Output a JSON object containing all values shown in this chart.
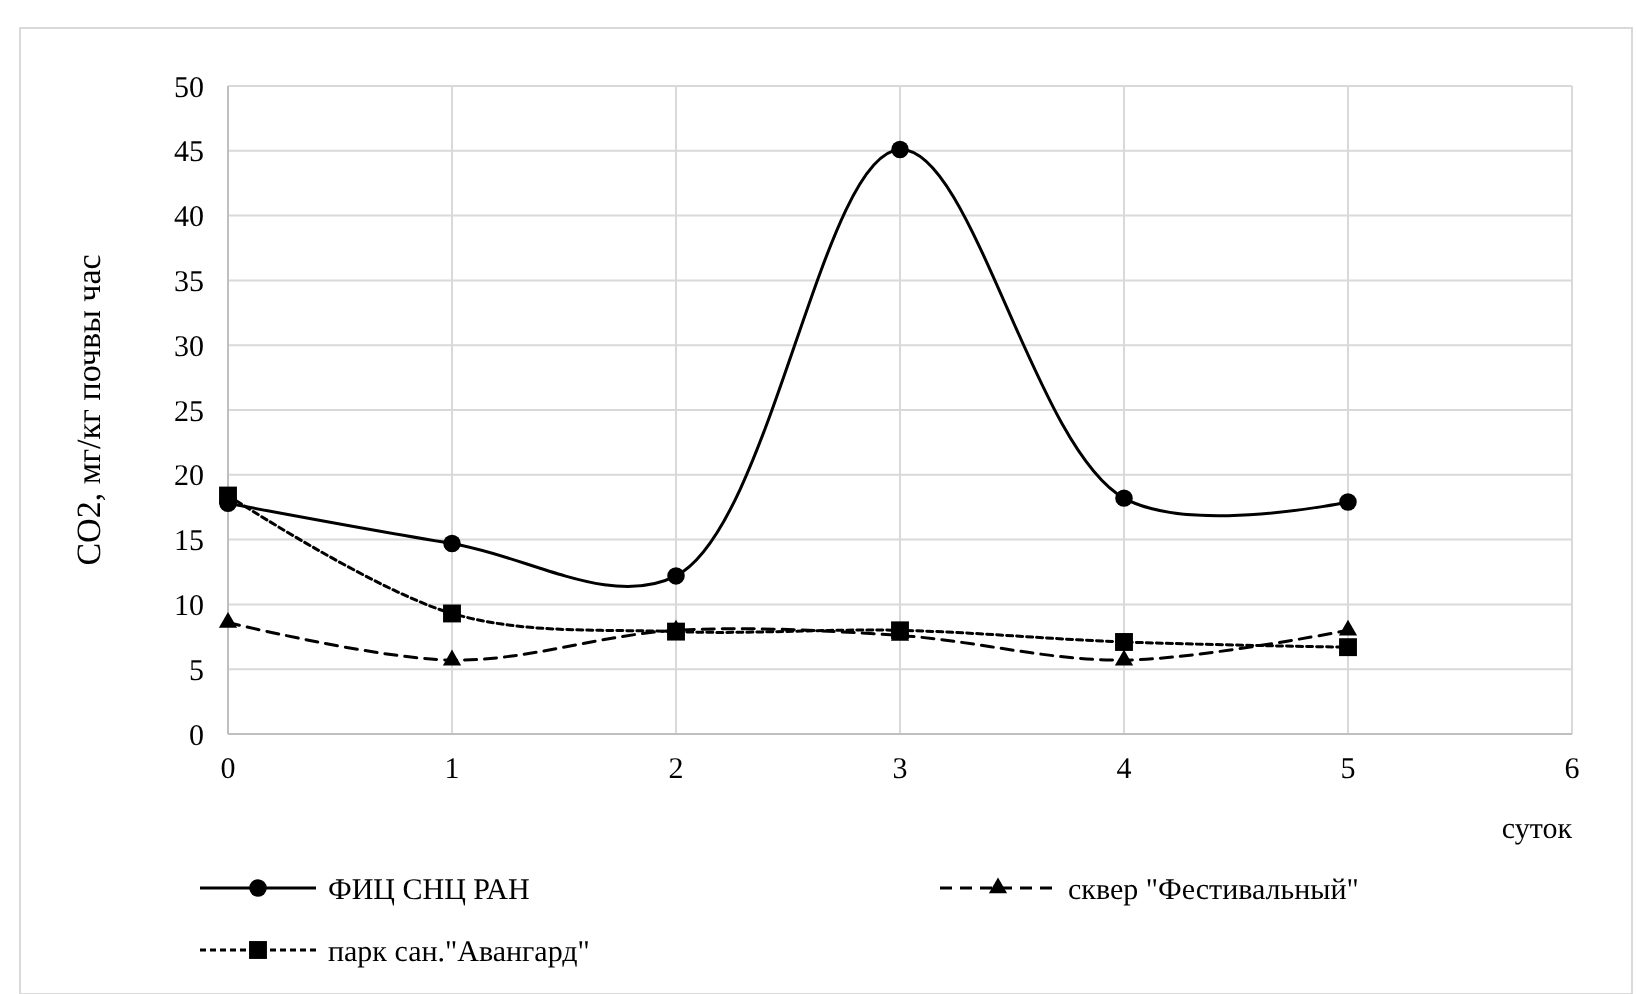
{
  "chart_data": {
    "type": "line",
    "xlabel": "суток",
    "ylabel": "CO2, мг/кг почвы час",
    "x": [
      0,
      1,
      2,
      3,
      4,
      5
    ],
    "xlim": [
      0,
      6
    ],
    "xticks": [
      0,
      1,
      2,
      3,
      4,
      5,
      6
    ],
    "ylim": [
      0,
      50
    ],
    "yticks": [
      0,
      5,
      10,
      15,
      20,
      25,
      30,
      35,
      40,
      45,
      50
    ],
    "grid": true,
    "legend": "bottom",
    "series": [
      {
        "name": "ФИЦ  СНЦ РАН",
        "color": "#000000",
        "marker": "circle",
        "line_style": "solid",
        "values": [
          17.8,
          14.7,
          12.2,
          45.1,
          18.2,
          17.9
        ]
      },
      {
        "name": "сквер \"Фестивальный\"",
        "color": "#000000",
        "marker": "triangle",
        "line_style": "dashed",
        "values": [
          8.6,
          5.7,
          8.0,
          7.6,
          5.7,
          8.0
        ]
      },
      {
        "name": "парк сан.\"Авангард\"",
        "color": "#000000",
        "marker": "square",
        "line_style": "dotted",
        "values": [
          18.4,
          9.3,
          7.9,
          8.0,
          7.1,
          6.7
        ]
      }
    ]
  }
}
